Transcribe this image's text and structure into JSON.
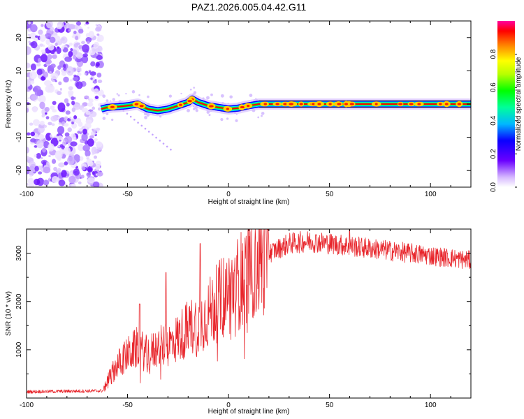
{
  "title": "PAZ1.2026.005.04.42.G11",
  "chart_data": [
    {
      "type": "heatmap",
      "name": "spectrogram",
      "xlabel": "Height of straight line (km)",
      "ylabel": "Frequency (Hz)",
      "xlim": [
        -100,
        120
      ],
      "ylim": [
        -25,
        25
      ],
      "xticks": [
        -100,
        -50,
        0,
        50,
        100
      ],
      "yticks": [
        -20,
        -10,
        0,
        10,
        20
      ],
      "colorbar": {
        "label": "Normalized spectral amplitude",
        "range": [
          0,
          1
        ],
        "ticks": [
          0.0,
          0.2,
          0.4,
          0.6,
          0.8
        ]
      },
      "signal_track": {
        "x": [
          -63,
          -60,
          -55,
          -50,
          -45,
          -40,
          -35,
          -30,
          -25,
          -20,
          -18,
          -15,
          -10,
          -5,
          0,
          5,
          10,
          15,
          20,
          40,
          60,
          80,
          100,
          120
        ],
        "freq": [
          -1.5,
          -1.0,
          -0.8,
          -0.5,
          0.0,
          -1.5,
          -2.0,
          -1.5,
          -0.5,
          0.5,
          1.5,
          0.5,
          -0.5,
          -1.0,
          -1.5,
          -1.2,
          -0.5,
          0.0,
          0.0,
          0.0,
          0.0,
          0.0,
          0.0,
          0.0
        ]
      },
      "noise_region_x": [
        -100,
        -63
      ]
    },
    {
      "type": "line",
      "name": "snr",
      "xlabel": "Height of straight line (km)",
      "ylabel": "SNR (10 * v/v)",
      "xlim": [
        -100,
        120
      ],
      "ylim": [
        0,
        3500
      ],
      "xticks": [
        -100,
        -50,
        0,
        50,
        100
      ],
      "yticks": [
        1000,
        2000,
        3000
      ],
      "series": [
        {
          "name": "SNR",
          "color": "#e8252b",
          "envelope_x": [
            -100,
            -62,
            -60,
            -55,
            -50,
            -45,
            -40,
            -35,
            -30,
            -25,
            -20,
            -15,
            -10,
            -5,
            0,
            5,
            10,
            15,
            20,
            25,
            30,
            40,
            50,
            60,
            70,
            80,
            90,
            100,
            110,
            120
          ],
          "envelope_y": [
            130,
            150,
            350,
            700,
            900,
            1050,
            900,
            1050,
            1100,
            1250,
            1450,
            1550,
            1750,
            2000,
            2200,
            2400,
            2650,
            2850,
            3000,
            3100,
            3200,
            3250,
            3200,
            3150,
            3100,
            3050,
            3000,
            2950,
            2900,
            2850
          ],
          "spikes": [
            {
              "x": -44,
              "y": 1950
            },
            {
              "x": -31,
              "y": 2600
            },
            {
              "x": -14,
              "y": 3200
            },
            {
              "x": 60,
              "y": 3500
            }
          ]
        }
      ]
    }
  ]
}
